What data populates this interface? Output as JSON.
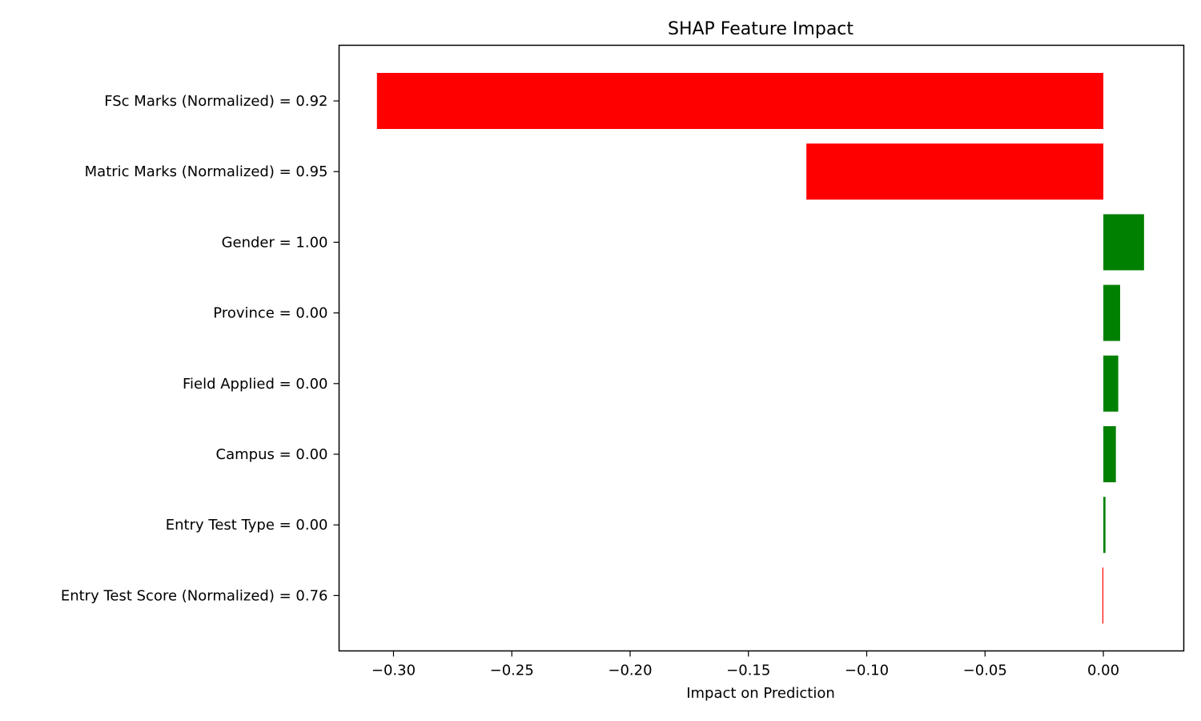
{
  "chart_data": {
    "type": "bar",
    "orientation": "horizontal",
    "title": "SHAP Feature Impact",
    "xlabel": "Impact on Prediction",
    "ylabel": "",
    "xlim": [
      -0.323,
      0.034
    ],
    "xticks": [
      -0.3,
      -0.25,
      -0.2,
      -0.15,
      -0.1,
      -0.05,
      0.0
    ],
    "xtick_labels": [
      "−0.30",
      "−0.25",
      "−0.20",
      "−0.15",
      "−0.10",
      "−0.05",
      "0.00"
    ],
    "grid": false,
    "legend": "none",
    "categories": [
      "FSc Marks (Normalized) = 0.92",
      "Matric Marks (Normalized) = 0.95",
      "Gender = 1.00",
      "Province = 0.00",
      "Field Applied = 0.00",
      "Campus = 0.00",
      "Entry Test Type = 0.00",
      "Entry Test Score (Normalized) = 0.76"
    ],
    "values": [
      -0.307,
      -0.1255,
      0.0172,
      0.0071,
      0.0063,
      0.0053,
      0.0009,
      -0.0004
    ],
    "colors": {
      "negative": "#ff0000",
      "positive": "#008000"
    }
  }
}
